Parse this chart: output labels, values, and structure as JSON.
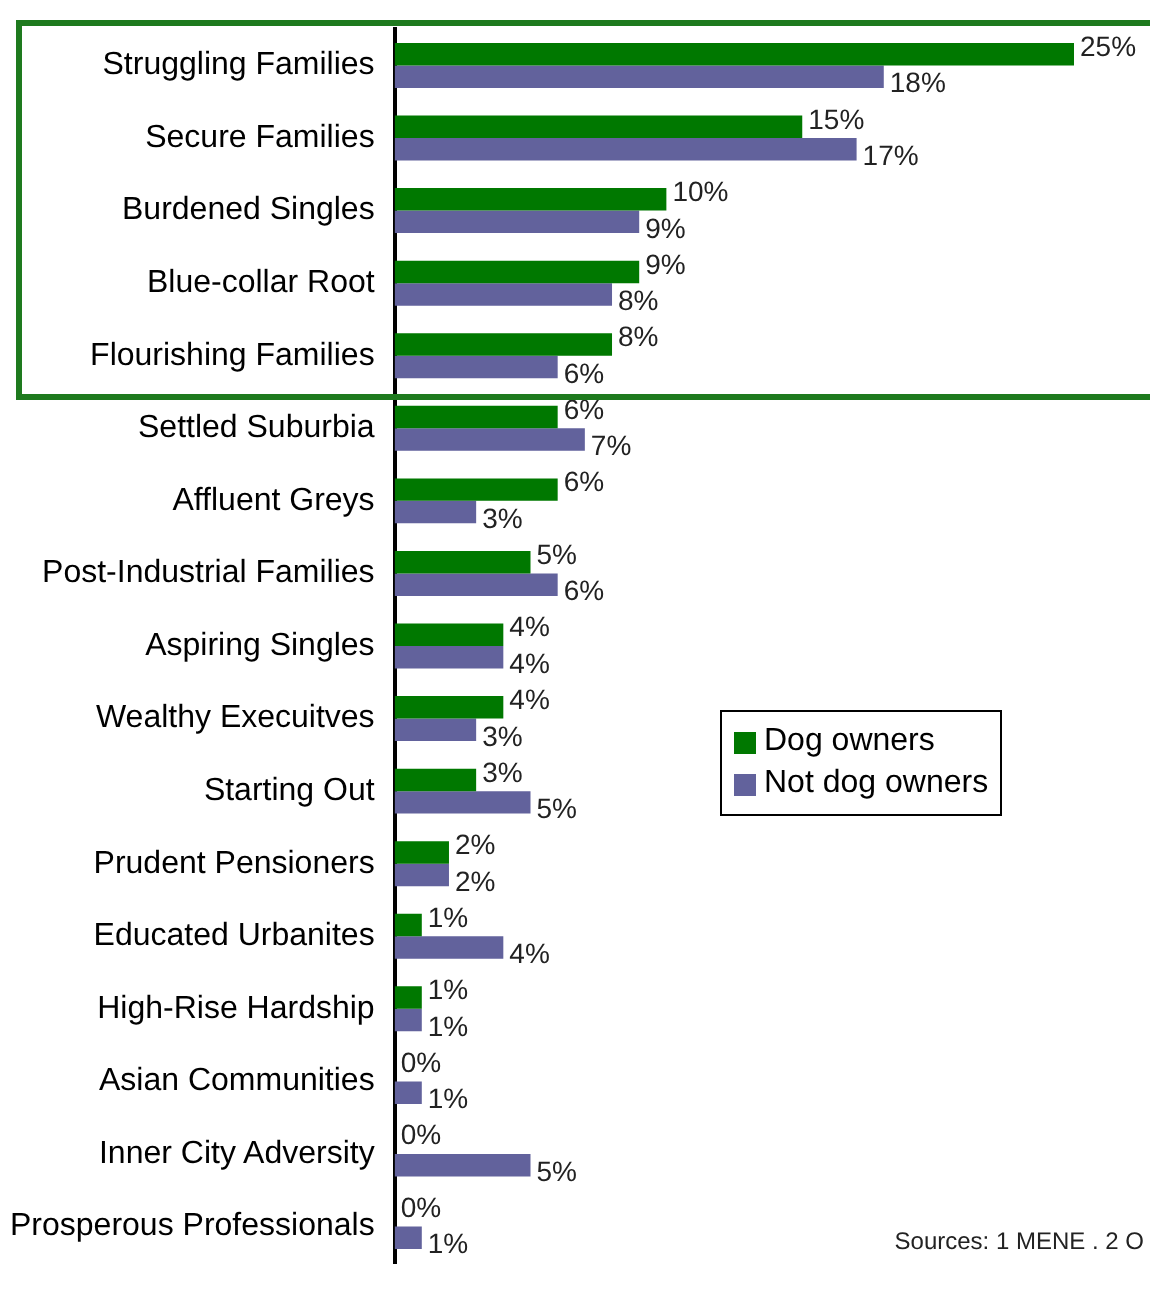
{
  "chart_data": {
    "type": "bar",
    "orientation": "horizontal",
    "categories": [
      "Struggling Families",
      "Secure Families",
      "Burdened Singles",
      "Blue-collar Root",
      "Flourishing Families",
      "Settled Suburbia",
      "Affluent Greys",
      "Post-Industrial Families",
      "Aspiring Singles",
      "Wealthy Execuitves",
      "Starting Out",
      "Prudent Pensioners",
      "Educated Urbanites",
      "High-Rise Hardship",
      "Asian Communities",
      "Inner City Adversity",
      "Prosperous Professionals"
    ],
    "series": [
      {
        "name": "Dog owners",
        "color": "#007800",
        "values": [
          25,
          15,
          10,
          9,
          8,
          6,
          6,
          5,
          4,
          4,
          3,
          2,
          1,
          1,
          0,
          0,
          0
        ],
        "value_labels": [
          "25%",
          "15%",
          "10%",
          "9%",
          "8%",
          "6%",
          "6%",
          "5%",
          "4%",
          "4%",
          "3%",
          "2%",
          "1%",
          "1%",
          "0%",
          "0%",
          "0%"
        ]
      },
      {
        "name": "Not dog owners",
        "color": "#62629c",
        "values": [
          18,
          17,
          9,
          8,
          6,
          7,
          3,
          6,
          4,
          3,
          5,
          2,
          4,
          1,
          1,
          5,
          1
        ],
        "value_labels": [
          "18%",
          "17%",
          "9%",
          "8%",
          "6%",
          "7%",
          "3%",
          "6%",
          "4%",
          "3%",
          "5%",
          "2%",
          "4%",
          "1%",
          "1%",
          "5%",
          "1%"
        ]
      }
    ],
    "tick_labels": "y",
    "legend": "right",
    "annotations": [
      "Sources: 1 MENE . 2 O"
    ]
  }
}
